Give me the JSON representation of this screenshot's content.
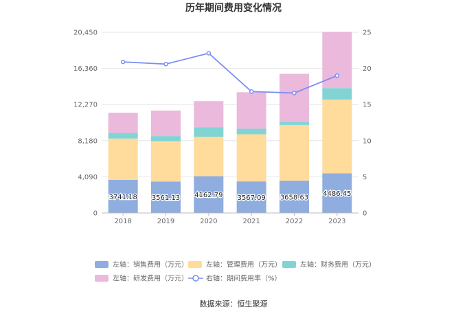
{
  "chart_data": {
    "type": "bar",
    "title": "历年期间费用变化情况",
    "categories": [
      "2018",
      "2019",
      "2020",
      "2021",
      "2022",
      "2023"
    ],
    "left_axis": {
      "ticks": [
        "0",
        "4,090",
        "8,180",
        "12,270",
        "16,360",
        "20,450"
      ],
      "range": [
        0,
        20450
      ]
    },
    "right_axis": {
      "ticks": [
        "0",
        "5",
        "10",
        "15",
        "20",
        "25"
      ],
      "range": [
        0,
        25
      ]
    },
    "series": [
      {
        "name": "左轴：销售费用（万元）",
        "color": "#8fadde",
        "values": [
          3741.18,
          3561.13,
          4162.79,
          3567.09,
          3658.63,
          4486.45
        ],
        "labels": [
          "3741.18",
          "3561.13",
          "4162.79",
          "3567.09",
          "3658.63",
          "4486.45"
        ]
      },
      {
        "name": "左轴：管理费用（万元）",
        "color": "#ffdb9c",
        "values": [
          4680,
          4560,
          4470,
          5340,
          6300,
          8350
        ]
      },
      {
        "name": "左轴：财务费用（万元）",
        "color": "#82d4d4",
        "values": [
          640,
          580,
          1050,
          620,
          350,
          1300
        ]
      },
      {
        "name": "左轴：研发费用（万元）",
        "color": "#eab9db",
        "values": [
          2290,
          2890,
          2970,
          4130,
          5440,
          6360
        ]
      },
      {
        "name": "右轴：期间费用率（%）",
        "color": "#7b8ef1",
        "type": "line",
        "values": [
          20.9,
          20.6,
          22.1,
          16.8,
          16.6,
          19.0
        ]
      }
    ],
    "grid": true,
    "legend": "bottom"
  },
  "source": "数据来源：恒生聚源"
}
